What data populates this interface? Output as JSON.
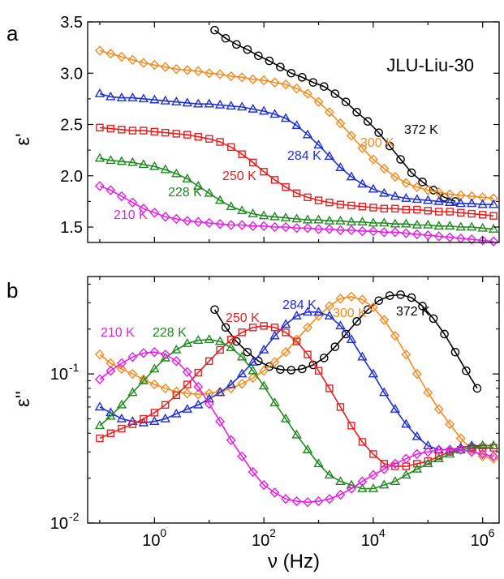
{
  "chart_data": [
    {
      "panel": "a",
      "type": "scatter",
      "title": "JLU-Liu-30",
      "xlabel": "",
      "ylabel": "ε'",
      "xscale": "log",
      "xlim": [
        0.06,
        2000000
      ],
      "ylim": [
        1.35,
        3.5
      ],
      "yticks": [
        "1.5",
        "2.0",
        "2.5",
        "3.0",
        "3.5"
      ],
      "grid": false,
      "series": [
        {
          "name": "372 K",
          "color": "#000000",
          "marker": "circle",
          "x": [
            12.6,
            20,
            31.6,
            50,
            79.4,
            126,
            200,
            316,
            501,
            794,
            1260,
            2000,
            3160,
            5010,
            7940,
            12600,
            20000,
            31600,
            50100,
            79400,
            126000,
            200000,
            316000
          ],
          "y": [
            3.42,
            3.34,
            3.28,
            3.23,
            3.17,
            3.12,
            3.06,
            3.0,
            2.96,
            2.91,
            2.87,
            2.8,
            2.72,
            2.62,
            2.53,
            2.42,
            2.29,
            2.16,
            2.03,
            1.94,
            1.86,
            1.79,
            1.75
          ]
        },
        {
          "name": "300 K",
          "color": "#f58a1f",
          "marker": "diamond",
          "x": [
            0.1,
            0.158,
            0.251,
            0.398,
            0.631,
            1,
            1.58,
            2.51,
            3.98,
            6.31,
            10,
            15.8,
            25.1,
            39.8,
            63.1,
            100,
            158,
            251,
            398,
            631,
            1000,
            1580,
            2510,
            3980,
            6310,
            10000,
            15800,
            25100,
            39800,
            63100,
            100000,
            158000,
            251000,
            398000,
            631000,
            1000000,
            1580000
          ],
          "y": [
            3.22,
            3.19,
            3.16,
            3.13,
            3.1,
            3.08,
            3.06,
            3.04,
            3.03,
            3.02,
            3.0,
            2.99,
            2.97,
            2.96,
            2.94,
            2.93,
            2.91,
            2.89,
            2.85,
            2.8,
            2.72,
            2.62,
            2.51,
            2.39,
            2.27,
            2.16,
            2.07,
            1.99,
            1.93,
            1.89,
            1.86,
            1.84,
            1.82,
            1.81,
            1.8,
            1.79,
            1.78
          ]
        },
        {
          "name": "284 K",
          "color": "#1f2fd6",
          "marker": "triangle",
          "x": [
            0.1,
            0.158,
            0.251,
            0.398,
            0.631,
            1,
            1.58,
            2.51,
            3.98,
            6.31,
            10,
            15.8,
            25.1,
            39.8,
            63.1,
            100,
            158,
            251,
            398,
            631,
            1000,
            1580,
            2510,
            3980,
            6310,
            10000,
            15800,
            25100,
            39800,
            63100,
            100000,
            158000,
            251000,
            398000,
            631000,
            1000000,
            1580000
          ],
          "y": [
            2.8,
            2.77,
            2.76,
            2.76,
            2.75,
            2.74,
            2.73,
            2.72,
            2.71,
            2.7,
            2.7,
            2.69,
            2.68,
            2.67,
            2.65,
            2.63,
            2.6,
            2.56,
            2.49,
            2.4,
            2.3,
            2.19,
            2.08,
            1.99,
            1.92,
            1.87,
            1.83,
            1.8,
            1.78,
            1.77,
            1.76,
            1.75,
            1.74,
            1.73,
            1.73,
            1.72,
            1.72
          ]
        },
        {
          "name": "250 K",
          "color": "#e81f1f",
          "marker": "square",
          "x": [
            0.1,
            0.158,
            0.251,
            0.398,
            0.631,
            1,
            1.58,
            2.51,
            3.98,
            6.31,
            10,
            15.8,
            25.1,
            39.8,
            63.1,
            100,
            158,
            251,
            398,
            631,
            1000,
            1580,
            2510,
            3980,
            6310,
            10000,
            15800,
            25100,
            39800,
            63100,
            100000,
            158000,
            251000,
            398000,
            631000,
            1000000,
            1580000
          ],
          "y": [
            2.47,
            2.46,
            2.45,
            2.44,
            2.44,
            2.43,
            2.42,
            2.41,
            2.4,
            2.38,
            2.36,
            2.33,
            2.28,
            2.21,
            2.13,
            2.04,
            1.96,
            1.89,
            1.83,
            1.79,
            1.76,
            1.74,
            1.72,
            1.71,
            1.7,
            1.69,
            1.68,
            1.68,
            1.67,
            1.67,
            1.66,
            1.65,
            1.65,
            1.64,
            1.63,
            1.62,
            1.61
          ]
        },
        {
          "name": "228 K",
          "color": "#1e8a1e",
          "marker": "triangle",
          "x": [
            0.1,
            0.158,
            0.251,
            0.398,
            0.631,
            1,
            1.58,
            2.51,
            3.98,
            6.31,
            10,
            15.8,
            25.1,
            39.8,
            63.1,
            100,
            158,
            251,
            398,
            631,
            1000,
            1580,
            2510,
            3980,
            6310,
            10000,
            15800,
            25100,
            39800,
            63100,
            100000,
            158000,
            251000,
            398000,
            631000,
            1000000,
            1580000
          ],
          "y": [
            2.17,
            2.15,
            2.14,
            2.13,
            2.11,
            2.09,
            2.06,
            2.02,
            1.97,
            1.9,
            1.83,
            1.76,
            1.7,
            1.66,
            1.63,
            1.61,
            1.6,
            1.59,
            1.58,
            1.57,
            1.57,
            1.56,
            1.56,
            1.55,
            1.55,
            1.54,
            1.54,
            1.53,
            1.53,
            1.52,
            1.52,
            1.51,
            1.51,
            1.5,
            1.5,
            1.49,
            1.48
          ]
        },
        {
          "name": "210 K",
          "color": "#e61fe6",
          "marker": "diamond",
          "x": [
            0.1,
            0.158,
            0.251,
            0.398,
            0.631,
            1,
            1.58,
            2.51,
            3.98,
            6.31,
            10,
            15.8,
            25.1,
            39.8,
            63.1,
            100,
            158,
            251,
            398,
            631,
            1000,
            1580,
            2510,
            3980,
            6310,
            10000,
            15800,
            25100,
            39800,
            63100,
            100000,
            158000,
            251000,
            398000,
            631000,
            1000000,
            1580000
          ],
          "y": [
            1.9,
            1.86,
            1.8,
            1.74,
            1.68,
            1.64,
            1.6,
            1.58,
            1.56,
            1.55,
            1.54,
            1.53,
            1.52,
            1.52,
            1.51,
            1.51,
            1.5,
            1.5,
            1.49,
            1.49,
            1.48,
            1.48,
            1.47,
            1.47,
            1.46,
            1.46,
            1.45,
            1.45,
            1.44,
            1.43,
            1.42,
            1.41,
            1.4,
            1.39,
            1.38,
            1.37,
            1.36
          ]
        }
      ],
      "annotations": [
        "372 K",
        "300 K",
        "284 K",
        "250 K",
        "228 K",
        "210 K"
      ]
    },
    {
      "panel": "b",
      "type": "scatter",
      "xlabel": "ν (Hz)",
      "ylabel": "ε''",
      "xscale": "log",
      "yscale": "log",
      "xlim": [
        0.06,
        2000000
      ],
      "ylim": [
        0.01,
        0.45
      ],
      "xticks": [
        "10^0",
        "10^2",
        "10^4",
        "10^6"
      ],
      "yticks": [
        "10^-1",
        "10^-2"
      ],
      "grid": false,
      "series": [
        {
          "name": "372 K",
          "color": "#000000",
          "marker": "circle",
          "x": [
            12.6,
            20,
            31.6,
            50,
            79.4,
            126,
            200,
            316,
            501,
            794,
            1260,
            2000,
            3160,
            5010,
            7940,
            12600,
            20000,
            31600,
            50100,
            79400,
            126000,
            200000,
            316000,
            501000,
            794000
          ],
          "y": [
            0.27,
            0.205,
            0.165,
            0.14,
            0.122,
            0.112,
            0.107,
            0.106,
            0.108,
            0.115,
            0.128,
            0.152,
            0.185,
            0.225,
            0.27,
            0.31,
            0.335,
            0.34,
            0.325,
            0.285,
            0.235,
            0.185,
            0.14,
            0.105,
            0.08
          ]
        },
        {
          "name": "300 K",
          "color": "#f58a1f",
          "marker": "diamond",
          "x": [
            0.1,
            0.158,
            0.251,
            0.398,
            0.631,
            1,
            1.58,
            2.51,
            3.98,
            6.31,
            10,
            15.8,
            25.1,
            39.8,
            63.1,
            100,
            158,
            251,
            398,
            631,
            1000,
            1580,
            2510,
            3980,
            6310,
            10000,
            15800,
            25100,
            39800,
            63100,
            100000,
            158000,
            251000,
            398000,
            631000,
            1000000,
            1580000
          ],
          "y": [
            0.135,
            0.118,
            0.108,
            0.1,
            0.092,
            0.085,
            0.08,
            0.076,
            0.074,
            0.073,
            0.074,
            0.076,
            0.08,
            0.086,
            0.094,
            0.105,
            0.12,
            0.14,
            0.17,
            0.205,
            0.245,
            0.285,
            0.32,
            0.33,
            0.315,
            0.28,
            0.23,
            0.18,
            0.135,
            0.1,
            0.075,
            0.058,
            0.046,
            0.037,
            0.031,
            0.028,
            0.027
          ]
        },
        {
          "name": "284 K",
          "color": "#1f2fd6",
          "marker": "triangle",
          "x": [
            0.1,
            0.158,
            0.251,
            0.398,
            0.631,
            1,
            1.58,
            2.51,
            3.98,
            6.31,
            10,
            15.8,
            25.1,
            39.8,
            63.1,
            100,
            158,
            251,
            398,
            631,
            1000,
            1580,
            2510,
            3980,
            6310,
            10000,
            15800,
            25100,
            39800,
            63100,
            100000,
            158000,
            251000,
            398000,
            631000,
            1000000,
            1580000
          ],
          "y": [
            0.06,
            0.055,
            0.05,
            0.048,
            0.047,
            0.048,
            0.05,
            0.054,
            0.058,
            0.062,
            0.068,
            0.075,
            0.085,
            0.1,
            0.12,
            0.145,
            0.18,
            0.215,
            0.245,
            0.26,
            0.26,
            0.245,
            0.21,
            0.17,
            0.13,
            0.1,
            0.075,
            0.058,
            0.046,
            0.038,
            0.033,
            0.031,
            0.031,
            0.032,
            0.033,
            0.033,
            0.033
          ]
        },
        {
          "name": "250 K",
          "color": "#e81f1f",
          "marker": "square",
          "x": [
            0.1,
            0.158,
            0.251,
            0.398,
            0.631,
            1,
            1.58,
            2.51,
            3.98,
            6.31,
            10,
            15.8,
            25.1,
            39.8,
            63.1,
            100,
            158,
            251,
            398,
            631,
            1000,
            1580,
            2510,
            3980,
            6310,
            10000,
            15800,
            25100,
            39800,
            63100,
            100000,
            158000,
            251000,
            398000,
            631000,
            1000000,
            1580000
          ],
          "y": [
            0.037,
            0.04,
            0.043,
            0.046,
            0.05,
            0.055,
            0.062,
            0.072,
            0.085,
            0.102,
            0.122,
            0.145,
            0.17,
            0.19,
            0.205,
            0.21,
            0.205,
            0.19,
            0.165,
            0.135,
            0.105,
            0.08,
            0.06,
            0.045,
            0.035,
            0.029,
            0.025,
            0.024,
            0.024,
            0.025,
            0.026,
            0.028,
            0.03,
            0.031,
            0.032,
            0.032,
            0.032
          ]
        },
        {
          "name": "228 K",
          "color": "#1e8a1e",
          "marker": "triangle",
          "x": [
            0.1,
            0.158,
            0.251,
            0.398,
            0.631,
            1,
            1.58,
            2.51,
            3.98,
            6.31,
            10,
            15.8,
            25.1,
            39.8,
            63.1,
            100,
            158,
            251,
            398,
            631,
            1000,
            1580,
            2510,
            3980,
            6310,
            10000,
            15800,
            25100,
            39800,
            63100,
            100000,
            158000,
            251000,
            398000,
            631000,
            1000000,
            1580000
          ],
          "y": [
            0.045,
            0.052,
            0.062,
            0.075,
            0.09,
            0.108,
            0.128,
            0.145,
            0.16,
            0.168,
            0.17,
            0.165,
            0.15,
            0.13,
            0.105,
            0.083,
            0.064,
            0.05,
            0.039,
            0.031,
            0.025,
            0.021,
            0.019,
            0.018,
            0.017,
            0.017,
            0.018,
            0.019,
            0.021,
            0.023,
            0.025,
            0.027,
            0.029,
            0.031,
            0.032,
            0.033,
            0.033
          ]
        },
        {
          "name": "210 K",
          "color": "#e61fe6",
          "marker": "diamond",
          "x": [
            0.1,
            0.158,
            0.251,
            0.398,
            0.631,
            1,
            1.58,
            2.51,
            3.98,
            6.31,
            10,
            15.8,
            25.1,
            39.8,
            63.1,
            100,
            158,
            251,
            398,
            631,
            1000,
            1580,
            2510,
            3980,
            6310,
            10000,
            15800,
            25100,
            39800,
            63100,
            100000,
            158000,
            251000,
            398000,
            631000,
            1000000,
            1580000
          ],
          "y": [
            0.092,
            0.105,
            0.118,
            0.13,
            0.138,
            0.14,
            0.135,
            0.122,
            0.103,
            0.082,
            0.063,
            0.048,
            0.036,
            0.028,
            0.022,
            0.018,
            0.016,
            0.0145,
            0.014,
            0.0138,
            0.014,
            0.0145,
            0.0155,
            0.017,
            0.019,
            0.021,
            0.023,
            0.025,
            0.027,
            0.029,
            0.03,
            0.031,
            0.031,
            0.031,
            0.03,
            0.029,
            0.028
          ]
        }
      ],
      "annotations": [
        "372 K",
        "300 K",
        "284 K",
        "250 K",
        "228 K",
        "210 K"
      ]
    }
  ],
  "labels": {
    "panel_a": "a",
    "panel_b": "b"
  }
}
